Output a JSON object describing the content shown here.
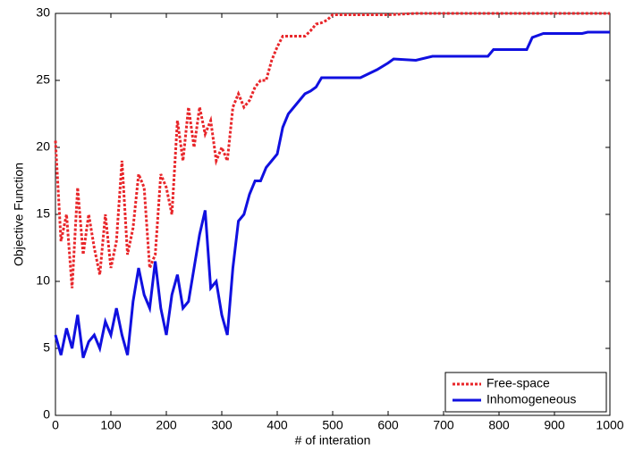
{
  "chart_data": {
    "type": "line",
    "xlabel": "# of interation",
    "ylabel": "Objective Function",
    "xlim": [
      0,
      1000
    ],
    "xticks": [
      0,
      100,
      200,
      300,
      400,
      500,
      600,
      700,
      800,
      900,
      1000
    ],
    "ylim": [
      0,
      30
    ],
    "yticks": [
      0,
      5,
      10,
      15,
      20,
      25,
      30
    ],
    "legend": "lower right",
    "series": [
      {
        "name": "Free-space",
        "color": "#e8262a",
        "linestyle": "dotted",
        "x": [
          0,
          10,
          20,
          30,
          40,
          50,
          60,
          70,
          80,
          90,
          100,
          110,
          120,
          130,
          140,
          150,
          160,
          170,
          180,
          190,
          200,
          210,
          220,
          230,
          240,
          250,
          260,
          270,
          280,
          290,
          300,
          310,
          320,
          330,
          340,
          350,
          360,
          370,
          380,
          390,
          400,
          410,
          420,
          430,
          440,
          450,
          460,
          470,
          480,
          490,
          500,
          550,
          600,
          650,
          700,
          800,
          900,
          1000
        ],
        "values": [
          20.5,
          13,
          15,
          9.5,
          17,
          12,
          15,
          12.5,
          10.5,
          15,
          11,
          13,
          19,
          12,
          14,
          18,
          17,
          11,
          12,
          18,
          17,
          15,
          22,
          19,
          23,
          20,
          23,
          21,
          22,
          19,
          20,
          19,
          23,
          24,
          23,
          23.5,
          24.5,
          25,
          25,
          26.5,
          27.5,
          28.3,
          28.3,
          28.3,
          28.3,
          28.3,
          28.7,
          29.2,
          29.3,
          29.5,
          29.9,
          29.9,
          29.9,
          30,
          30,
          30,
          30,
          30
        ]
      },
      {
        "name": "Inhomogeneous",
        "color": "#1010e0",
        "linestyle": "solid",
        "x": [
          0,
          10,
          20,
          30,
          40,
          50,
          60,
          70,
          80,
          90,
          100,
          110,
          120,
          130,
          140,
          150,
          160,
          170,
          180,
          190,
          200,
          210,
          220,
          230,
          240,
          250,
          260,
          270,
          280,
          290,
          300,
          310,
          320,
          330,
          340,
          350,
          360,
          370,
          380,
          390,
          400,
          410,
          420,
          430,
          440,
          450,
          460,
          470,
          480,
          500,
          550,
          580,
          600,
          610,
          650,
          680,
          780,
          790,
          850,
          860,
          880,
          950,
          960,
          1000
        ],
        "values": [
          6,
          4.5,
          6.5,
          5,
          7.5,
          4.3,
          5.5,
          6,
          5,
          7,
          6,
          8,
          6,
          4.5,
          8.5,
          11,
          9,
          8,
          11.5,
          8,
          6,
          9,
          10.5,
          8,
          8.5,
          11,
          13.5,
          15.3,
          9.5,
          10,
          7.5,
          6,
          11,
          14.5,
          15,
          16.5,
          17.5,
          17.5,
          18.5,
          19,
          19.5,
          21.5,
          22.5,
          23,
          23.5,
          24,
          24.2,
          24.5,
          25.2,
          25.2,
          25.2,
          25.8,
          26.3,
          26.6,
          26.5,
          26.8,
          26.8,
          27.3,
          27.3,
          28.2,
          28.5,
          28.5,
          28.6,
          28.6
        ]
      }
    ]
  }
}
